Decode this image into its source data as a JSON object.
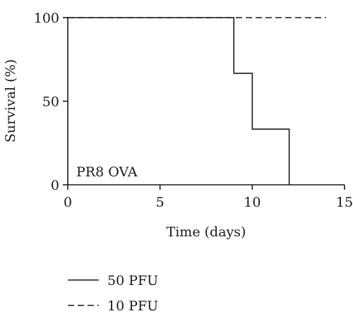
{
  "chart_data": {
    "type": "line",
    "step": true,
    "xlabel": "Time (days)",
    "ylabel": "Survival (%)",
    "xlim": [
      0,
      15
    ],
    "ylim": [
      0,
      100
    ],
    "x_ticks": [
      0,
      5,
      10,
      15
    ],
    "y_ticks": [
      0,
      50,
      100
    ],
    "grid": false,
    "legend_position": "bottom-left",
    "annotation": "PR8 OVA",
    "series": [
      {
        "name": "50 PFU",
        "line_style": "solid",
        "color": "#1a1a1a",
        "points": [
          {
            "x": 0,
            "y": 100
          },
          {
            "x": 9,
            "y": 66.7
          },
          {
            "x": 10,
            "y": 33.3
          },
          {
            "x": 12,
            "y": 0
          }
        ],
        "end_x": 12
      },
      {
        "name": "10 PFU",
        "line_style": "dashed",
        "color": "#1a1a1a",
        "points": [
          {
            "x": 0,
            "y": 100
          }
        ],
        "end_x": 14
      }
    ]
  }
}
